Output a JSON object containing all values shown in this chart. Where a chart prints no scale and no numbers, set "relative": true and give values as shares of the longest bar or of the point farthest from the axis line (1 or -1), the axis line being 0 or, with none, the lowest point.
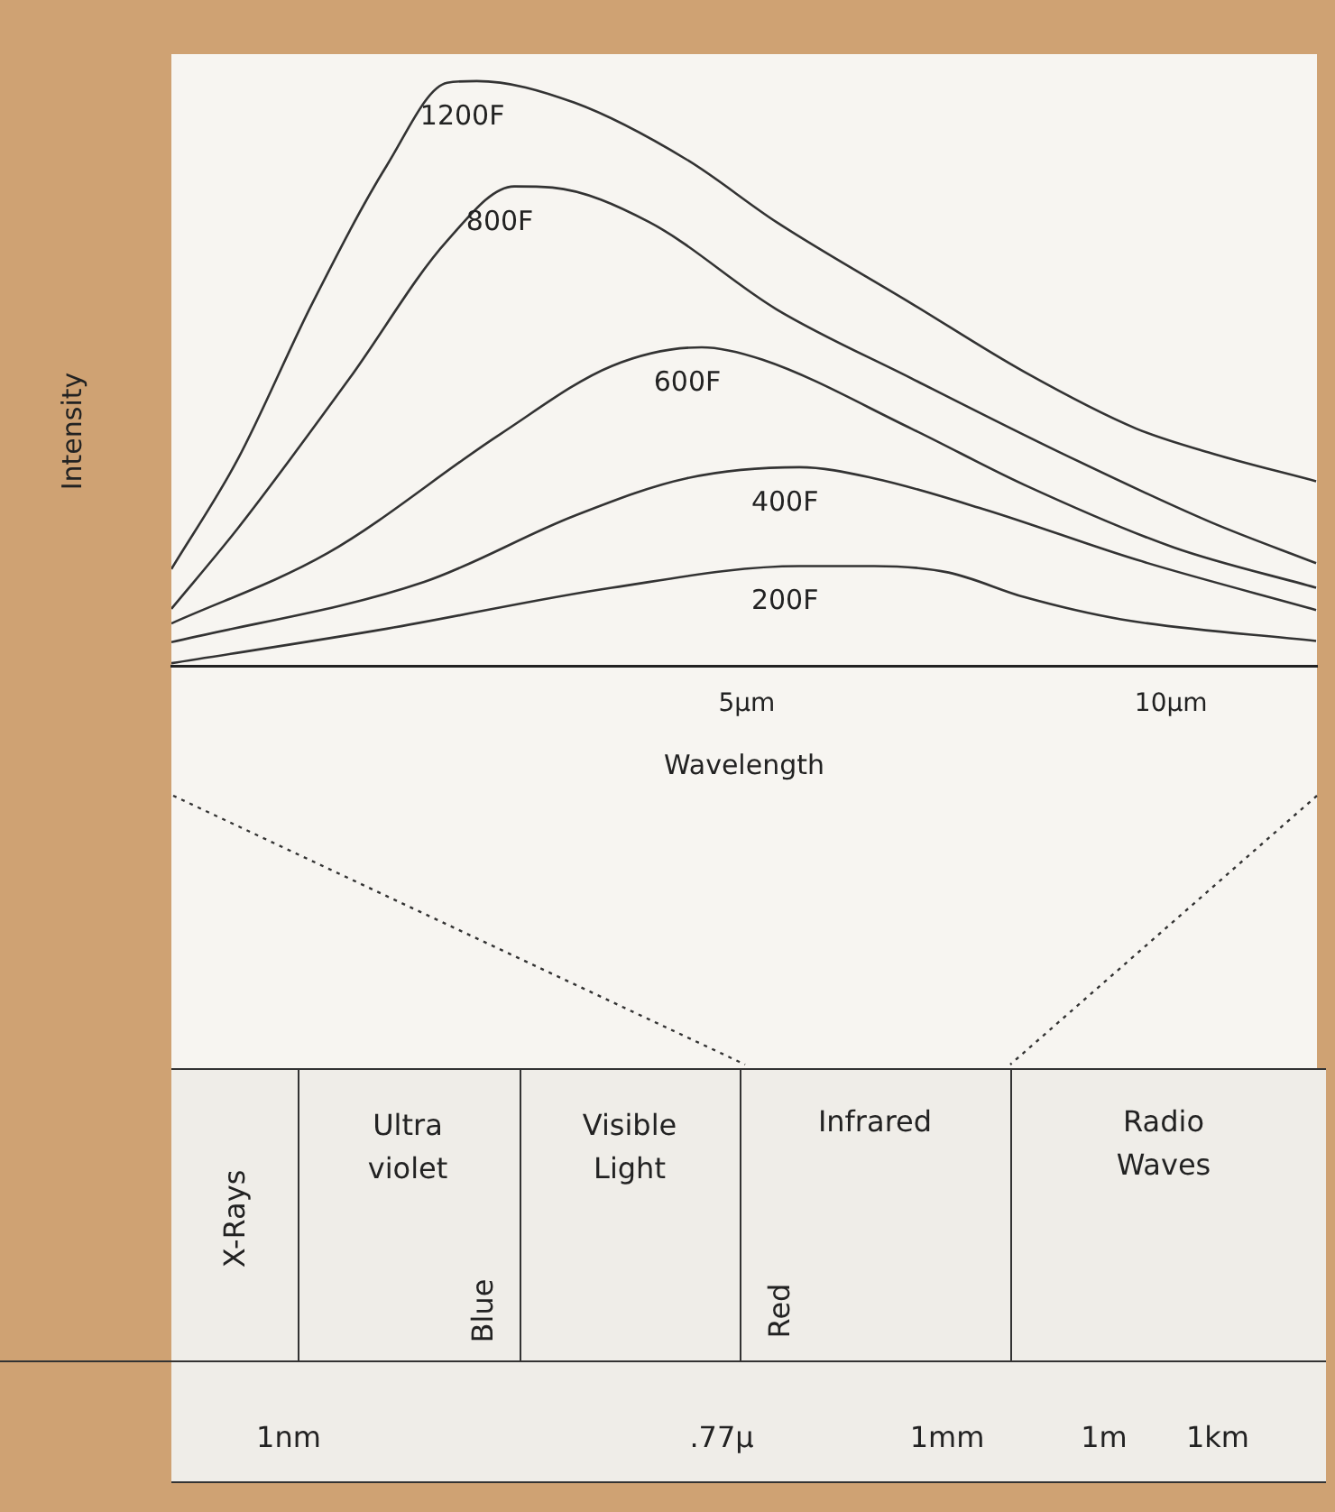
{
  "chart_data": {
    "type": "line",
    "relative": true,
    "xlabel": "Wavelength",
    "ylabel": "Intensity",
    "xlim": [
      -1.78,
      11.72
    ],
    "xticks": [
      {
        "value": 5,
        "label": "5µm"
      },
      {
        "value": 10,
        "label": "10µm"
      }
    ],
    "legend": false,
    "grid": false,
    "marker": "none",
    "line_style": "solid",
    "series": [
      {
        "name": "1200F",
        "color": "#333333",
        "x": [
          -1.78,
          -1.0,
          -0.12,
          0.76,
          1.47,
          1.82,
          2.97,
          4.29,
          5.35,
          6.94,
          8.27,
          9.59,
          10.47,
          11.71
        ],
        "values": [
          0.166,
          0.353,
          0.62,
          0.856,
          0.997,
          1.0,
          0.963,
          0.866,
          0.759,
          0.62,
          0.503,
          0.406,
          0.364,
          0.316
        ]
      },
      {
        "name": "800F",
        "color": "#333333",
        "x": [
          -1.78,
          -1.0,
          0.32,
          1.47,
          2.26,
          2.71,
          3.85,
          5.35,
          6.94,
          8.71,
          10.47,
          11.71
        ],
        "values": [
          0.098,
          0.235,
          0.492,
          0.727,
          0.82,
          0.818,
          0.759,
          0.61,
          0.492,
          0.364,
          0.246,
          0.176
        ]
      },
      {
        "name": "600F",
        "color": "#333333",
        "x": [
          -1.78,
          0.06,
          2.09,
          3.41,
          4.47,
          5.18,
          6.94,
          8.27,
          10.03,
          11.71
        ],
        "values": [
          0.073,
          0.193,
          0.396,
          0.513,
          0.545,
          0.524,
          0.406,
          0.31,
          0.203,
          0.134
        ]
      },
      {
        "name": "400F",
        "color": "#333333",
        "x": [
          -1.78,
          1.2,
          2.97,
          4.29,
          5.62,
          6.5,
          7.82,
          9.59,
          11.71
        ],
        "values": [
          0.041,
          0.144,
          0.257,
          0.321,
          0.34,
          0.321,
          0.267,
          0.182,
          0.096
        ]
      },
      {
        "name": "200F",
        "color": "#333333",
        "x": [
          -1.78,
          0.76,
          3.41,
          5.62,
          6.5,
          7.38,
          8.27,
          9.41,
          11.71
        ],
        "values": [
          0.005,
          0.064,
          0.134,
          0.171,
          0.171,
          0.16,
          0.118,
          0.08,
          0.043
        ]
      }
    ],
    "annotations": [
      "X-Rays",
      "Ultra violet",
      "Visible Light",
      "Infrared",
      "Radio Waves",
      "Blue",
      "Red",
      "1nm",
      ".77µ",
      "1mm",
      "1m",
      "1km"
    ]
  }
}
